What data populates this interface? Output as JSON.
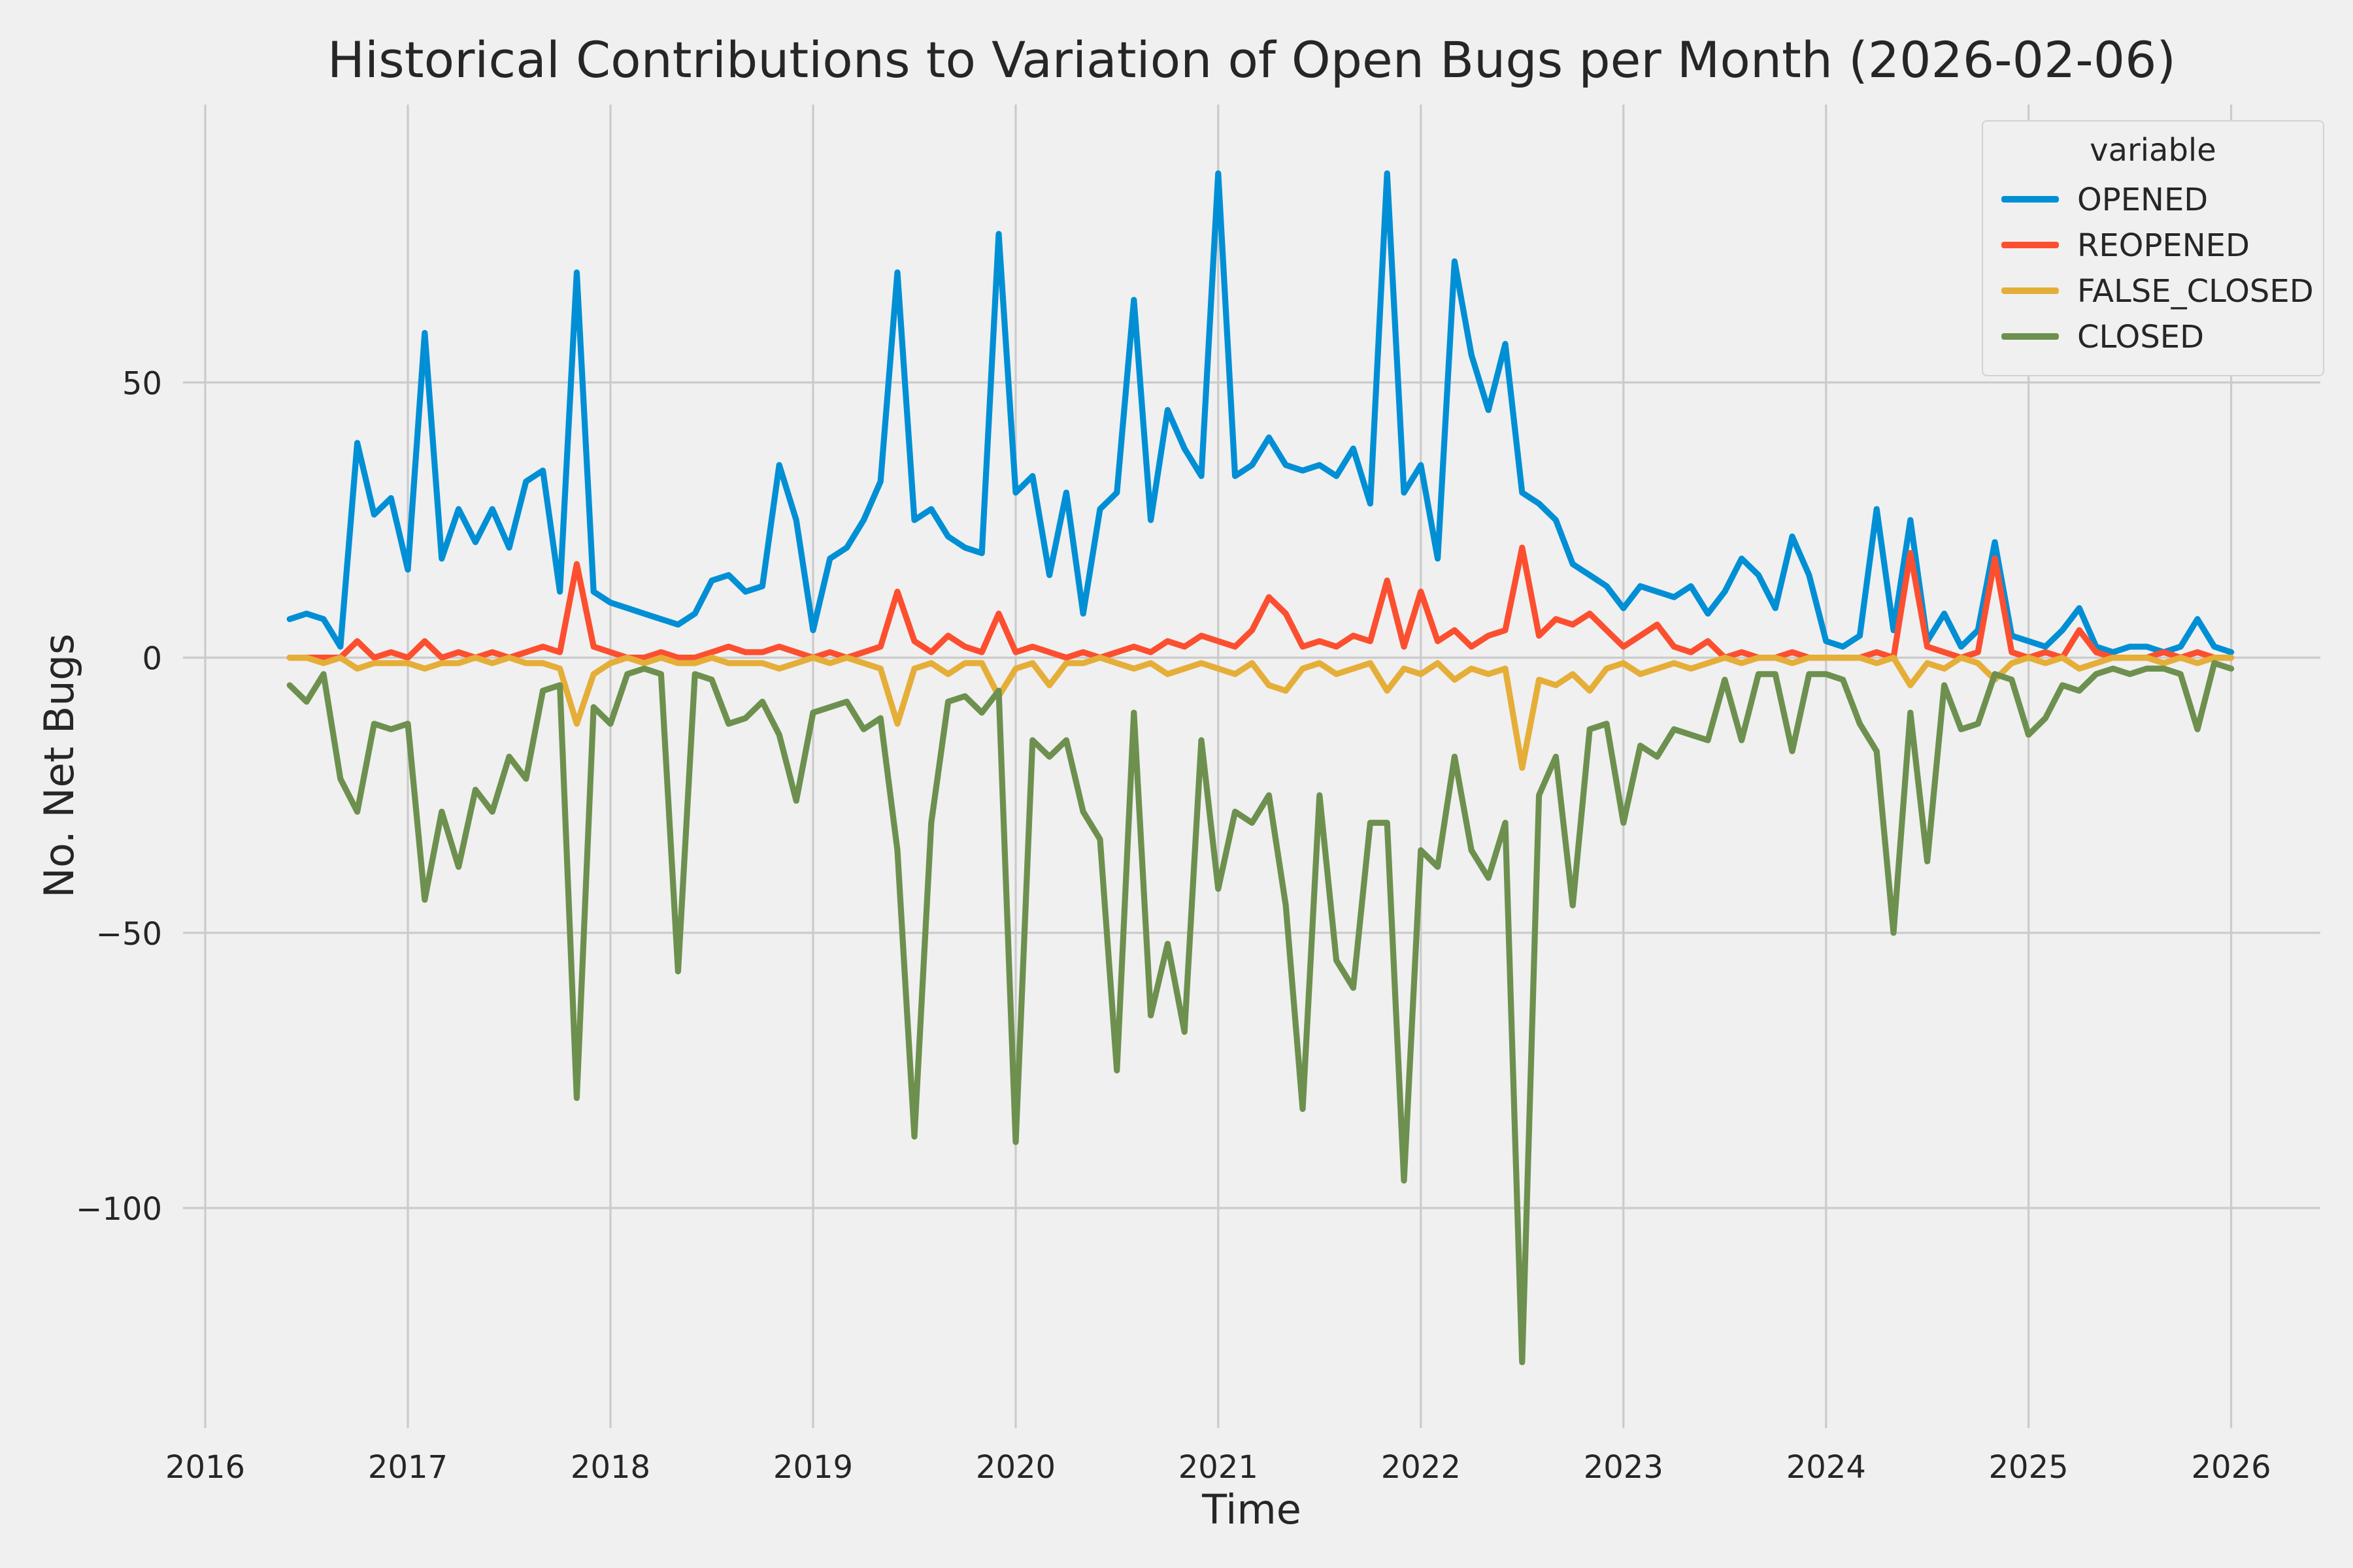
{
  "colors": {
    "background": "#F0F0F0",
    "grid": "#CBCBCB",
    "text": "#262626",
    "opened": "#008FD5",
    "reopened": "#FC4F30",
    "false_closed": "#E5AE38",
    "closed": "#6D904F"
  },
  "chart_data": {
    "type": "line",
    "title": "Historical Contributions to Variation of Open Bugs per Month (2026-02-06)",
    "xlabel": "Time",
    "ylabel": "No. Net Bugs",
    "grid": true,
    "legend": {
      "title": "variable",
      "position": "upper right"
    },
    "xlim": [
      2015.89,
      2026.44
    ],
    "ylim": [
      -140,
      100.5
    ],
    "x_ticks": [
      2016,
      2017,
      2018,
      2019,
      2020,
      2021,
      2022,
      2023,
      2024,
      2025,
      2026
    ],
    "y_ticks": [
      {
        "value": 50,
        "label": "50"
      },
      {
        "value": 0,
        "label": "0"
      },
      {
        "value": -50,
        "label": "−50"
      },
      {
        "value": -100,
        "label": "−100"
      }
    ],
    "x_start": {
      "year": 2016,
      "month": 6
    },
    "x_frequency": "monthly",
    "series": [
      {
        "name": "OPENED",
        "color": "#008FD5",
        "values": [
          7,
          8,
          7,
          2,
          39,
          26,
          29,
          16,
          59,
          18,
          27,
          21,
          27,
          20,
          32,
          34,
          12,
          70,
          12,
          10,
          9,
          8,
          7,
          6,
          8,
          14,
          15,
          12,
          13,
          35,
          25,
          5,
          18,
          20,
          25,
          32,
          70,
          25,
          27,
          22,
          20,
          19,
          77,
          30,
          33,
          15,
          30,
          8,
          27,
          30,
          65,
          25,
          45,
          38,
          33,
          88,
          33,
          35,
          40,
          35,
          34,
          35,
          33,
          38,
          28,
          88,
          30,
          35,
          18,
          72,
          55,
          45,
          57,
          30,
          28,
          25,
          17,
          15,
          13,
          9,
          13,
          12,
          11,
          13,
          8,
          12,
          18,
          15,
          9,
          22,
          15,
          3,
          2,
          4,
          27,
          5,
          25,
          3,
          8,
          2,
          5,
          21,
          4,
          3,
          2,
          5,
          9,
          2,
          1,
          2,
          2,
          1,
          2,
          7,
          2,
          1
        ]
      },
      {
        "name": "REOPENED",
        "color": "#FC4F30",
        "values": [
          0,
          0,
          0,
          0,
          3,
          0,
          1,
          0,
          3,
          0,
          1,
          0,
          1,
          0,
          1,
          2,
          1,
          17,
          2,
          1,
          0,
          0,
          1,
          0,
          0,
          1,
          2,
          1,
          1,
          2,
          1,
          0,
          1,
          0,
          1,
          2,
          12,
          3,
          1,
          4,
          2,
          1,
          8,
          1,
          2,
          1,
          0,
          1,
          0,
          1,
          2,
          1,
          3,
          2,
          4,
          3,
          2,
          5,
          11,
          8,
          2,
          3,
          2,
          4,
          3,
          14,
          2,
          12,
          3,
          5,
          2,
          4,
          5,
          20,
          4,
          7,
          6,
          8,
          5,
          2,
          4,
          6,
          2,
          1,
          3,
          0,
          1,
          0,
          0,
          1,
          0,
          0,
          0,
          0,
          1,
          0,
          19,
          2,
          1,
          0,
          1,
          18,
          1,
          0,
          1,
          0,
          5,
          1,
          0,
          0,
          0,
          1,
          0,
          1,
          0,
          0
        ]
      },
      {
        "name": "FALSE_CLOSED",
        "color": "#E5AE38",
        "values": [
          0,
          0,
          -1,
          0,
          -2,
          -1,
          -1,
          -1,
          -2,
          -1,
          -1,
          0,
          -1,
          0,
          -1,
          -1,
          -2,
          -12,
          -3,
          -1,
          0,
          -1,
          0,
          -1,
          -1,
          0,
          -1,
          -1,
          -1,
          -2,
          -1,
          0,
          -1,
          0,
          -1,
          -2,
          -12,
          -2,
          -1,
          -3,
          -1,
          -1,
          -7,
          -2,
          -1,
          -5,
          -1,
          -1,
          0,
          -1,
          -2,
          -1,
          -3,
          -2,
          -1,
          -2,
          -3,
          -1,
          -5,
          -6,
          -2,
          -1,
          -3,
          -2,
          -1,
          -6,
          -2,
          -3,
          -1,
          -4,
          -2,
          -3,
          -2,
          -20,
          -4,
          -5,
          -3,
          -6,
          -2,
          -1,
          -3,
          -2,
          -1,
          -2,
          -1,
          0,
          -1,
          0,
          0,
          -1,
          0,
          0,
          0,
          0,
          -1,
          0,
          -5,
          -1,
          -2,
          0,
          -1,
          -4,
          -1,
          0,
          -1,
          0,
          -2,
          -1,
          0,
          0,
          0,
          -1,
          0,
          -1,
          0,
          0
        ]
      },
      {
        "name": "CLOSED",
        "color": "#6D904F",
        "values": [
          -5,
          -8,
          -3,
          -22,
          -28,
          -12,
          -13,
          -12,
          -44,
          -28,
          -38,
          -24,
          -28,
          -18,
          -22,
          -6,
          -5,
          -80,
          -9,
          -12,
          -3,
          -2,
          -3,
          -57,
          -3,
          -4,
          -12,
          -11,
          -8,
          -14,
          -26,
          -10,
          -9,
          -8,
          -13,
          -11,
          -35,
          -87,
          -30,
          -8,
          -7,
          -10,
          -6,
          -88,
          -15,
          -18,
          -15,
          -28,
          -33,
          -75,
          -10,
          -65,
          -52,
          -68,
          -15,
          -42,
          -28,
          -30,
          -25,
          -45,
          -82,
          -25,
          -55,
          -60,
          -30,
          -30,
          -95,
          -35,
          -38,
          -18,
          -35,
          -40,
          -30,
          -128,
          -25,
          -18,
          -45,
          -13,
          -12,
          -30,
          -16,
          -18,
          -13,
          -14,
          -15,
          -4,
          -15,
          -3,
          -3,
          -17,
          -3,
          -3,
          -4,
          -12,
          -17,
          -50,
          -10,
          -37,
          -5,
          -13,
          -12,
          -3,
          -4,
          -14,
          -11,
          -5,
          -6,
          -3,
          -2,
          -3,
          -2,
          -2,
          -3,
          -13,
          -1,
          -2
        ]
      }
    ]
  }
}
